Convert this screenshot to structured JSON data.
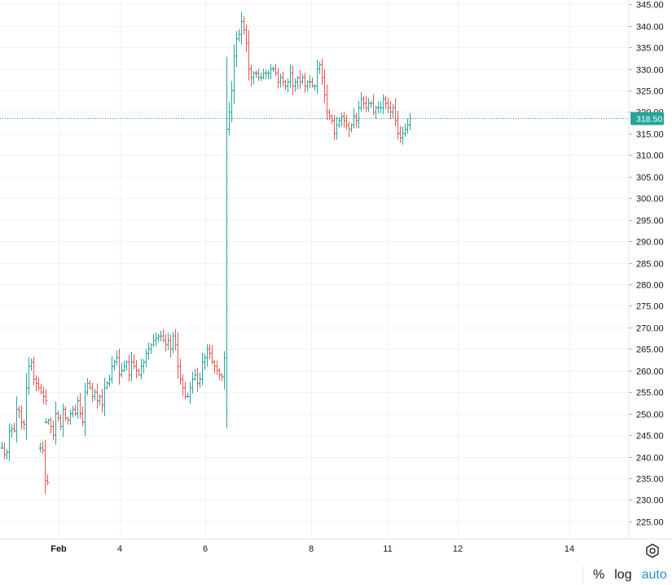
{
  "chart_data": {
    "type": "ohlc",
    "ylim": [
      221,
      346
    ],
    "y_ticks": [
      "345.00",
      "340.00",
      "335.00",
      "330.00",
      "325.00",
      "320.00",
      "315.00",
      "310.00",
      "305.00",
      "300.00",
      "295.00",
      "290.00",
      "285.00",
      "280.00",
      "275.00",
      "270.00",
      "265.00",
      "260.00",
      "255.00",
      "250.00",
      "245.00",
      "240.00",
      "235.00",
      "230.00",
      "225.00"
    ],
    "x_labels": [
      "Feb",
      "4",
      "6",
      "8",
      "11",
      "12",
      "14"
    ],
    "last_price": 318.5,
    "last_price_label": "318.50",
    "up_color": "#26a69a",
    "down_color": "#ef5350",
    "tag_color": "#26a69a",
    "segments": [
      {
        "start_time": 0,
        "points": [
          242,
          240.5,
          241,
          246,
          246.5,
          246,
          251,
          250.5,
          248,
          247.5,
          256,
          261,
          262,
          258,
          257,
          256,
          255,
          254,
          253
        ]
      },
      {
        "start_time": 15.5,
        "points": [
          242,
          241.5,
          234.5,
          234
        ]
      },
      {
        "start_time": 18,
        "points": [
          248,
          248.5,
          247,
          245,
          250,
          249,
          247,
          251,
          249,
          248.5,
          250,
          251,
          250,
          253,
          250,
          248,
          255,
          257,
          256,
          254,
          255,
          253,
          254,
          252,
          256,
          257,
          258,
          261,
          262,
          263,
          259,
          260,
          261,
          262,
          259,
          262,
          261,
          260,
          259,
          261,
          262,
          264,
          265,
          266,
          267,
          267.5,
          268,
          268,
          267,
          266,
          267,
          265,
          268,
          266,
          261,
          258,
          256,
          254,
          254,
          256,
          258,
          259,
          257,
          258,
          262,
          263,
          265,
          264,
          262,
          261,
          260,
          259,
          258.5,
          263,
          316,
          320,
          325,
          333,
          337,
          338,
          341,
          339,
          336,
          330,
          328,
          329,
          329,
          328,
          328,
          329,
          329,
          329,
          330,
          330,
          329,
          327,
          328,
          327,
          326,
          327,
          329,
          326,
          327,
          328,
          327,
          328,
          326,
          327,
          327,
          326,
          326,
          330,
          331,
          328,
          324,
          320,
          319,
          318,
          315,
          317,
          318,
          319,
          318,
          317,
          316,
          317,
          319,
          318,
          321,
          323,
          322,
          321,
          322,
          322,
          320,
          321,
          321,
          321,
          323,
          322,
          321,
          320,
          321,
          318,
          315,
          314,
          315,
          316,
          317,
          318.5
        ]
      }
    ]
  },
  "toolbar": {
    "percent_label": "%",
    "log_label": "log",
    "auto_label": "auto"
  }
}
